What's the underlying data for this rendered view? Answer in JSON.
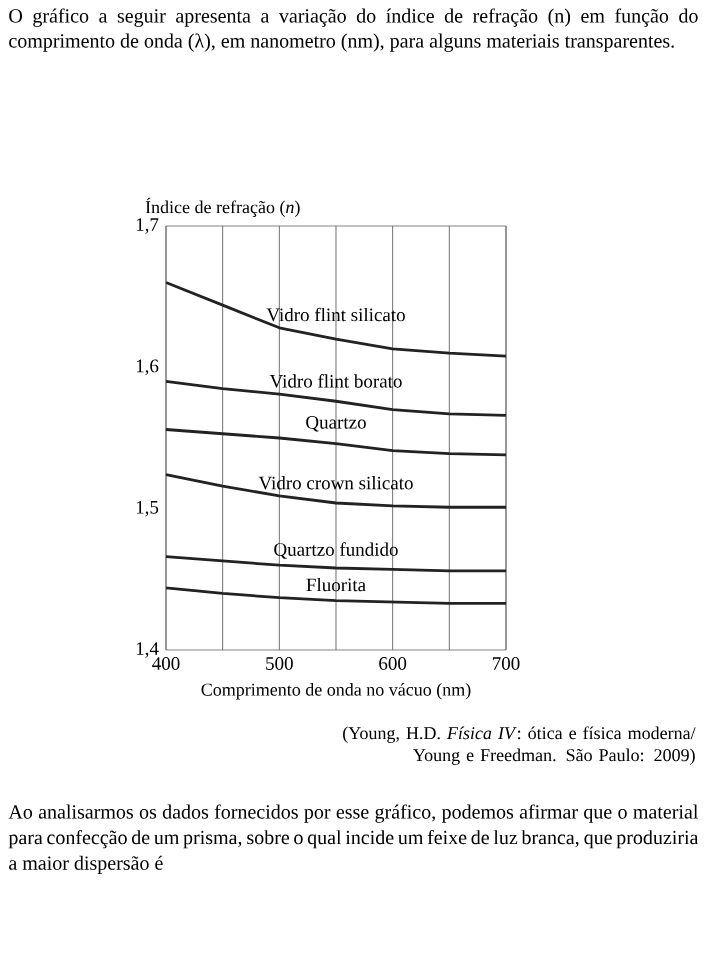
{
  "chart_data": {
    "type": "line",
    "title": "O gráfico a seguir apresenta a variação do índice de refração (n) em função do comprimento de onda (λ), em nanometro (nm), para alguns materiais transparentes.",
    "xlabel": "Comprimento de onda no vácuo (nm)",
    "ylabel": "Índice de refração (*n*)",
    "x": [
      400,
      450,
      500,
      550,
      600,
      650,
      700
    ],
    "series": [
      {
        "name": "Vidro flint silicato",
        "color": "#222222",
        "values": [
          1.66,
          1.644,
          1.628,
          1.62,
          1.613,
          1.61,
          1.608
        ]
      },
      {
        "name": "Vidro flint borato",
        "color": "#222222",
        "values": [
          1.59,
          1.585,
          1.581,
          1.576,
          1.57,
          1.567,
          1.566
        ]
      },
      {
        "name": "Quartzo",
        "color": "#222222",
        "values": [
          1.556,
          1.553,
          1.55,
          1.546,
          1.541,
          1.539,
          1.538
        ]
      },
      {
        "name": "Vidro crown silicato",
        "color": "#222222",
        "values": [
          1.524,
          1.516,
          1.509,
          1.504,
          1.502,
          1.501,
          1.501
        ]
      },
      {
        "name": "Quartzo fundido",
        "color": "#222222",
        "values": [
          1.466,
          1.463,
          1.46,
          1.458,
          1.457,
          1.456,
          1.456
        ]
      },
      {
        "name": "Fluorita",
        "color": "#222222",
        "values": [
          1.444,
          1.44,
          1.437,
          1.435,
          1.434,
          1.433,
          1.433
        ]
      }
    ],
    "xlim": [
      400,
      700
    ],
    "ylim": [
      1.4,
      1.7
    ],
    "xticks": [
      400,
      {
        "value": 450,
        "label": null
      },
      500,
      {
        "value": 550,
        "label": null
      },
      600,
      {
        "value": 650,
        "label": null
      },
      700
    ],
    "yticks": [
      {
        "value": 1.4,
        "label": "1,4"
      },
      {
        "value": 1.5,
        "label": "1,5"
      },
      {
        "value": 1.6,
        "label": "1,6"
      },
      {
        "value": 1.7,
        "label": "1,7"
      }
    ],
    "grid": "x",
    "legend": false,
    "marker": "none",
    "line_style": "solid",
    "annotations": [
      "(Young, H.D. *Física IV*: ótica e física moderna/ Young e Freedman. São Paulo: 2009)",
      "Ao analisarmos os dados fornecidos por esse gráfico, podemos afirmar que o material para confecção de um prisma, sobre o qual incide um feixe de luz branca, que produziria a maior dispersão é"
    ]
  }
}
